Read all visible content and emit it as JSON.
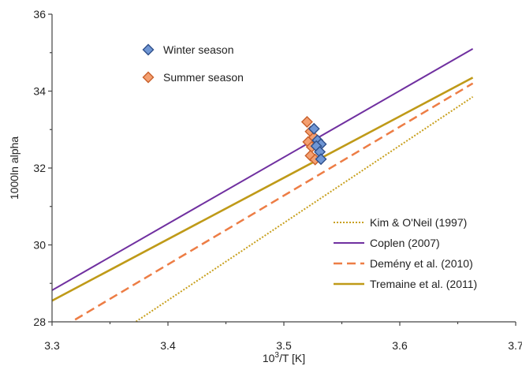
{
  "chart_data": {
    "type": "scatter",
    "title": "",
    "xlabel": "10",
    "xlabel_sup": "3",
    "xlabel_rest": "/T [K]",
    "ylabel": "1000ln alpha",
    "xlim": [
      3.3,
      3.7
    ],
    "ylim": [
      28,
      36
    ],
    "x_ticks": [
      "3.3",
      "3.4",
      "3.5",
      "3.6",
      "3.7"
    ],
    "y_ticks": [
      "28",
      "30",
      "32",
      "34",
      "36"
    ],
    "grid": false,
    "scatter_series": [
      {
        "name": "Winter season",
        "marker": "diamond",
        "color": "#6f96d4",
        "edge": "#2f4f8a",
        "points": [
          [
            3.526,
            33.02
          ],
          [
            3.529,
            32.72
          ],
          [
            3.532,
            32.62
          ],
          [
            3.528,
            32.57
          ],
          [
            3.531,
            32.42
          ],
          [
            3.532,
            32.23
          ]
        ]
      },
      {
        "name": "Summer season",
        "marker": "diamond",
        "color": "#f4a071",
        "edge": "#c9602b",
        "points": [
          [
            3.52,
            33.2
          ],
          [
            3.523,
            32.95
          ],
          [
            3.526,
            32.8
          ],
          [
            3.521,
            32.68
          ],
          [
            3.524,
            32.55
          ],
          [
            3.523,
            32.32
          ],
          [
            3.527,
            32.22
          ]
        ]
      }
    ],
    "line_series": [
      {
        "name": "Kim & O'Neil (1997)",
        "style": "dotted",
        "color": "#c8a01e",
        "width": 2,
        "x": [
          3.3,
          3.663
        ],
        "y": [
          26.55,
          33.85
        ]
      },
      {
        "name": "Coplen (2007)",
        "style": "solid",
        "color": "#7030a0",
        "width": 2,
        "x": [
          3.3,
          3.663
        ],
        "y": [
          28.82,
          35.1
        ]
      },
      {
        "name": "Demény et al. (2010)",
        "style": "dashed",
        "color": "#ed7d45",
        "width": 2.5,
        "x": [
          3.3,
          3.663
        ],
        "y": [
          27.7,
          34.2
        ]
      },
      {
        "name": "Tremaine et al. (2011)",
        "style": "solid",
        "color": "#bf9a18",
        "width": 2.6,
        "x": [
          3.3,
          3.663
        ],
        "y": [
          28.55,
          34.35
        ]
      }
    ]
  }
}
